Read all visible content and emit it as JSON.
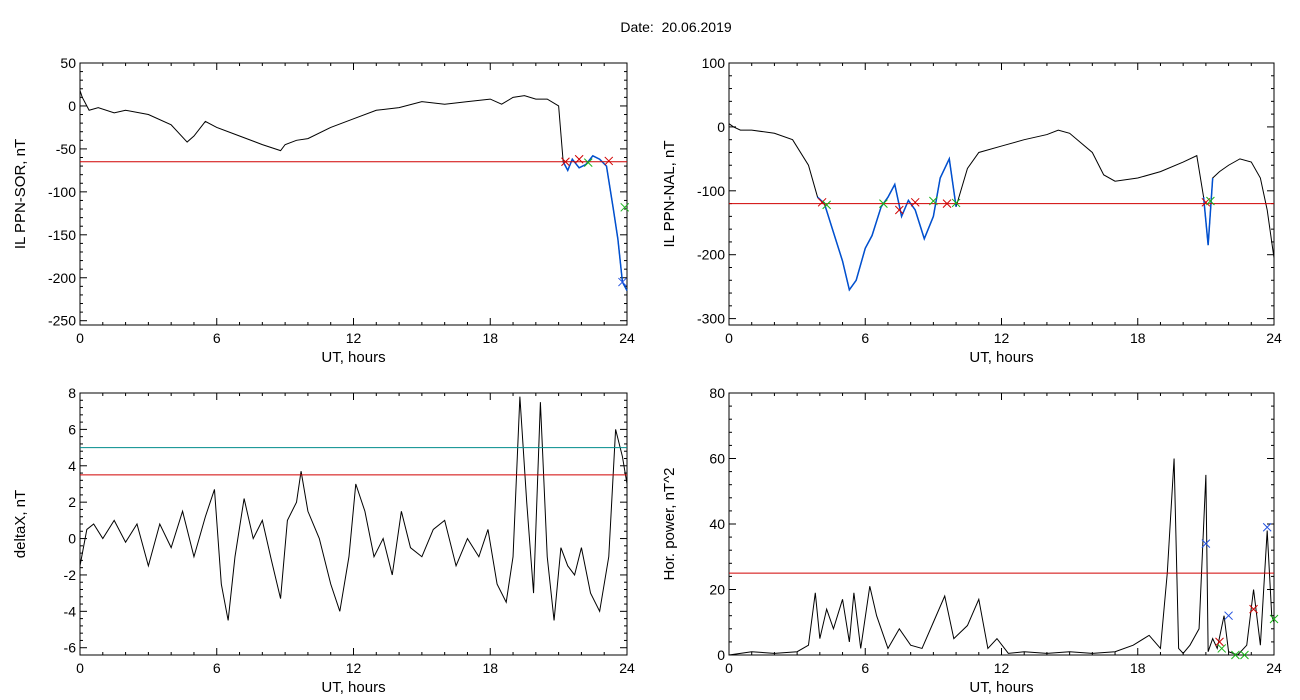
{
  "header": {
    "date_label": "Date:  20.06.2019"
  },
  "colors": {
    "axis": "#000000",
    "data": "#000000",
    "threshold": "#d00000",
    "threshold_alt": "#008c8c",
    "highlight": "#0050d0",
    "marker_red": "#d00000",
    "marker_green": "#18b418",
    "marker_blue": "#2050e0"
  },
  "chart_data": [
    {
      "id": "il-ppn-sor",
      "type": "line",
      "xlabel": "UT, hours",
      "ylabel": "IL PPN-SOR, nT",
      "xlim": [
        0,
        24
      ],
      "ylim": [
        -255,
        50
      ],
      "xticks": [
        0,
        6,
        12,
        18,
        24
      ],
      "yticks": [
        50,
        0,
        -50,
        -100,
        -150,
        -200,
        -250
      ],
      "series": [
        {
          "x": [
            0,
            0.1,
            0.4,
            0.8,
            1.5,
            2,
            3,
            4,
            4.7,
            5,
            5.5,
            6,
            7,
            8,
            8.8,
            9,
            9.5,
            10,
            11,
            12,
            13,
            14,
            15,
            16,
            17,
            18,
            18.5,
            19,
            19.5,
            20,
            20.5,
            21,
            21.2,
            21.4,
            21.6,
            21.9,
            22.2,
            22.5,
            22.8,
            23.1,
            23.4,
            23.6,
            23.8,
            24
          ],
          "y": [
            18,
            10,
            -5,
            -2,
            -8,
            -5,
            -10,
            -22,
            -42,
            -35,
            -18,
            -25,
            -35,
            -45,
            -52,
            -45,
            -40,
            -38,
            -25,
            -15,
            -5,
            -2,
            5,
            2,
            5,
            8,
            2,
            10,
            12,
            8,
            8,
            0,
            -65,
            -75,
            -62,
            -72,
            -68,
            -58,
            -62,
            -70,
            -120,
            -155,
            -205,
            -215
          ]
        }
      ],
      "thresholds": [
        {
          "y": -65,
          "color": "threshold"
        }
      ],
      "highlight": {
        "x_from": 21.2,
        "color": "highlight"
      },
      "markers": [
        {
          "x": 21.3,
          "y": -65,
          "color": "marker_red"
        },
        {
          "x": 21.9,
          "y": -62,
          "color": "marker_red"
        },
        {
          "x": 22.3,
          "y": -66,
          "color": "marker_green"
        },
        {
          "x": 23.2,
          "y": -64,
          "color": "marker_red"
        },
        {
          "x": 23.9,
          "y": -118,
          "color": "marker_green"
        },
        {
          "x": 23.8,
          "y": -205,
          "color": "marker_blue"
        }
      ]
    },
    {
      "id": "il-ppn-nal",
      "type": "line",
      "xlabel": "UT, hours",
      "ylabel": "IL PPN-NAL, nT",
      "xlim": [
        0,
        24
      ],
      "ylim": [
        -310,
        100
      ],
      "xticks": [
        0,
        6,
        12,
        18,
        24
      ],
      "yticks": [
        100,
        0,
        -100,
        -200,
        -300
      ],
      "series": [
        {
          "x": [
            0,
            0.2,
            0.5,
            1,
            2,
            2.8,
            3.5,
            3.9,
            4.2,
            4.6,
            5,
            5.3,
            5.6,
            6,
            6.3,
            6.7,
            7,
            7.3,
            7.6,
            7.9,
            8.2,
            8.6,
            9,
            9.3,
            9.7,
            10,
            10.5,
            11,
            12,
            13,
            14,
            14.5,
            15,
            16,
            16.5,
            17,
            18,
            19,
            20,
            20.6,
            20.9,
            21.1,
            21.3,
            21.6,
            22,
            22.5,
            23,
            23.4,
            23.7,
            24
          ],
          "y": [
            5,
            0,
            -5,
            -5,
            -10,
            -20,
            -60,
            -110,
            -120,
            -165,
            -210,
            -255,
            -240,
            -190,
            -170,
            -125,
            -110,
            -90,
            -140,
            -115,
            -130,
            -175,
            -140,
            -80,
            -50,
            -125,
            -65,
            -40,
            -30,
            -20,
            -12,
            -5,
            -10,
            -40,
            -75,
            -85,
            -80,
            -70,
            -55,
            -45,
            -110,
            -185,
            -80,
            -70,
            -60,
            -50,
            -55,
            -80,
            -130,
            -205
          ]
        }
      ],
      "thresholds": [
        {
          "y": -120,
          "color": "threshold"
        }
      ],
      "highlight": {
        "x_from": 3.9,
        "x_to": 10.2,
        "color": "highlight"
      },
      "highlight2": {
        "x_from": 20.9,
        "x_to": 21.3,
        "color": "highlight"
      },
      "markers": [
        {
          "x": 4.1,
          "y": -118,
          "color": "marker_red"
        },
        {
          "x": 4.3,
          "y": -122,
          "color": "marker_green"
        },
        {
          "x": 6.8,
          "y": -120,
          "color": "marker_green"
        },
        {
          "x": 7.5,
          "y": -130,
          "color": "marker_red"
        },
        {
          "x": 8.2,
          "y": -118,
          "color": "marker_red"
        },
        {
          "x": 9,
          "y": -116,
          "color": "marker_green"
        },
        {
          "x": 9.6,
          "y": -120,
          "color": "marker_red"
        },
        {
          "x": 10,
          "y": -119,
          "color": "marker_green"
        },
        {
          "x": 21,
          "y": -118,
          "color": "marker_red"
        },
        {
          "x": 21.2,
          "y": -116,
          "color": "marker_green"
        }
      ]
    },
    {
      "id": "delta-x",
      "type": "line",
      "xlabel": "UT, hours",
      "ylabel": "deltaX, nT",
      "xlim": [
        0,
        24
      ],
      "ylim": [
        -6.4,
        8
      ],
      "xticks": [
        0,
        6,
        12,
        18,
        24
      ],
      "yticks": [
        8,
        6,
        4,
        2,
        0,
        -2,
        -4,
        -6
      ],
      "series": [
        {
          "x": [
            0,
            0.3,
            0.6,
            1,
            1.5,
            2,
            2.5,
            3,
            3.5,
            4,
            4.5,
            5,
            5.5,
            5.9,
            6.2,
            6.5,
            6.8,
            7.2,
            7.6,
            8,
            8.4,
            8.8,
            9.1,
            9.5,
            9.7,
            10,
            10.5,
            11,
            11.4,
            11.8,
            12.1,
            12.5,
            12.9,
            13.3,
            13.7,
            14.1,
            14.5,
            15,
            15.5,
            16,
            16.5,
            17,
            17.5,
            17.9,
            18.3,
            18.7,
            19,
            19.3,
            19.6,
            19.9,
            20.2,
            20.5,
            20.8,
            21.1,
            21.4,
            21.7,
            22,
            22.4,
            22.8,
            23.2,
            23.5,
            23.8,
            24
          ],
          "y": [
            -1.5,
            0.5,
            0.8,
            0,
            1,
            -0.2,
            0.8,
            -1.5,
            0.8,
            -0.5,
            1.5,
            -1,
            1.2,
            2.7,
            -2.5,
            -4.5,
            -1,
            2.2,
            0,
            1,
            -1.2,
            -3.3,
            1,
            2,
            3.7,
            1.5,
            0,
            -2.5,
            -4,
            -1,
            3,
            1.5,
            -1,
            0,
            -2,
            1.5,
            -0.5,
            -1,
            0.5,
            1,
            -1.5,
            0,
            -1,
            0.5,
            -2.5,
            -3.5,
            -1,
            7.8,
            2,
            -3,
            7.5,
            -1,
            -4.5,
            -0.5,
            -1.5,
            -2,
            -0.5,
            -3,
            -4,
            -1,
            6,
            4.5,
            3
          ]
        }
      ],
      "thresholds": [
        {
          "y": 5,
          "color": "threshold_alt"
        },
        {
          "y": 3.5,
          "color": "threshold"
        }
      ]
    },
    {
      "id": "hor-power",
      "type": "line",
      "xlabel": "UT, hours",
      "ylabel": "Hor. power, nT^2",
      "xlim": [
        0,
        24
      ],
      "ylim": [
        0,
        80
      ],
      "xticks": [
        0,
        6,
        12,
        18,
        24
      ],
      "yticks": [
        80,
        60,
        40,
        20,
        0
      ],
      "series": [
        {
          "x": [
            0,
            1,
            2,
            3,
            3.5,
            3.8,
            4,
            4.3,
            4.6,
            5,
            5.3,
            5.5,
            5.8,
            6.2,
            6.5,
            7,
            7.5,
            8,
            8.5,
            9,
            9.5,
            9.9,
            10.5,
            11,
            11.4,
            11.8,
            12.3,
            13,
            14,
            15,
            16,
            17,
            17.8,
            18.5,
            19,
            19.3,
            19.6,
            19.8,
            20,
            20.3,
            20.7,
            21,
            21.1,
            21.3,
            21.5,
            21.8,
            22,
            22.4,
            22.8,
            23.1,
            23.4,
            23.7,
            23.9,
            24
          ],
          "y": [
            0,
            1,
            0.5,
            1,
            3,
            19,
            5,
            14,
            8,
            17,
            4,
            19,
            2,
            21,
            12,
            2,
            8,
            3,
            2,
            10,
            18,
            5,
            9,
            17,
            2,
            5,
            0.5,
            1,
            0.5,
            1,
            0.5,
            1,
            3,
            6,
            2,
            25,
            60,
            2,
            0.5,
            3,
            8,
            55,
            1,
            5,
            2,
            12,
            1,
            0,
            3,
            20,
            3,
            38,
            12,
            10
          ]
        }
      ],
      "thresholds": [
        {
          "y": 25,
          "color": "threshold"
        }
      ],
      "markers": [
        {
          "x": 21,
          "y": 34,
          "color": "marker_blue"
        },
        {
          "x": 21.6,
          "y": 4,
          "color": "marker_red"
        },
        {
          "x": 21.7,
          "y": 2,
          "color": "marker_green"
        },
        {
          "x": 22,
          "y": 12,
          "color": "marker_blue"
        },
        {
          "x": 22.3,
          "y": 0,
          "color": "marker_green"
        },
        {
          "x": 22.7,
          "y": 0,
          "color": "marker_green"
        },
        {
          "x": 23.1,
          "y": 14,
          "color": "marker_red"
        },
        {
          "x": 23.7,
          "y": 39,
          "color": "marker_blue"
        },
        {
          "x": 24,
          "y": 11,
          "color": "marker_green"
        }
      ]
    }
  ]
}
